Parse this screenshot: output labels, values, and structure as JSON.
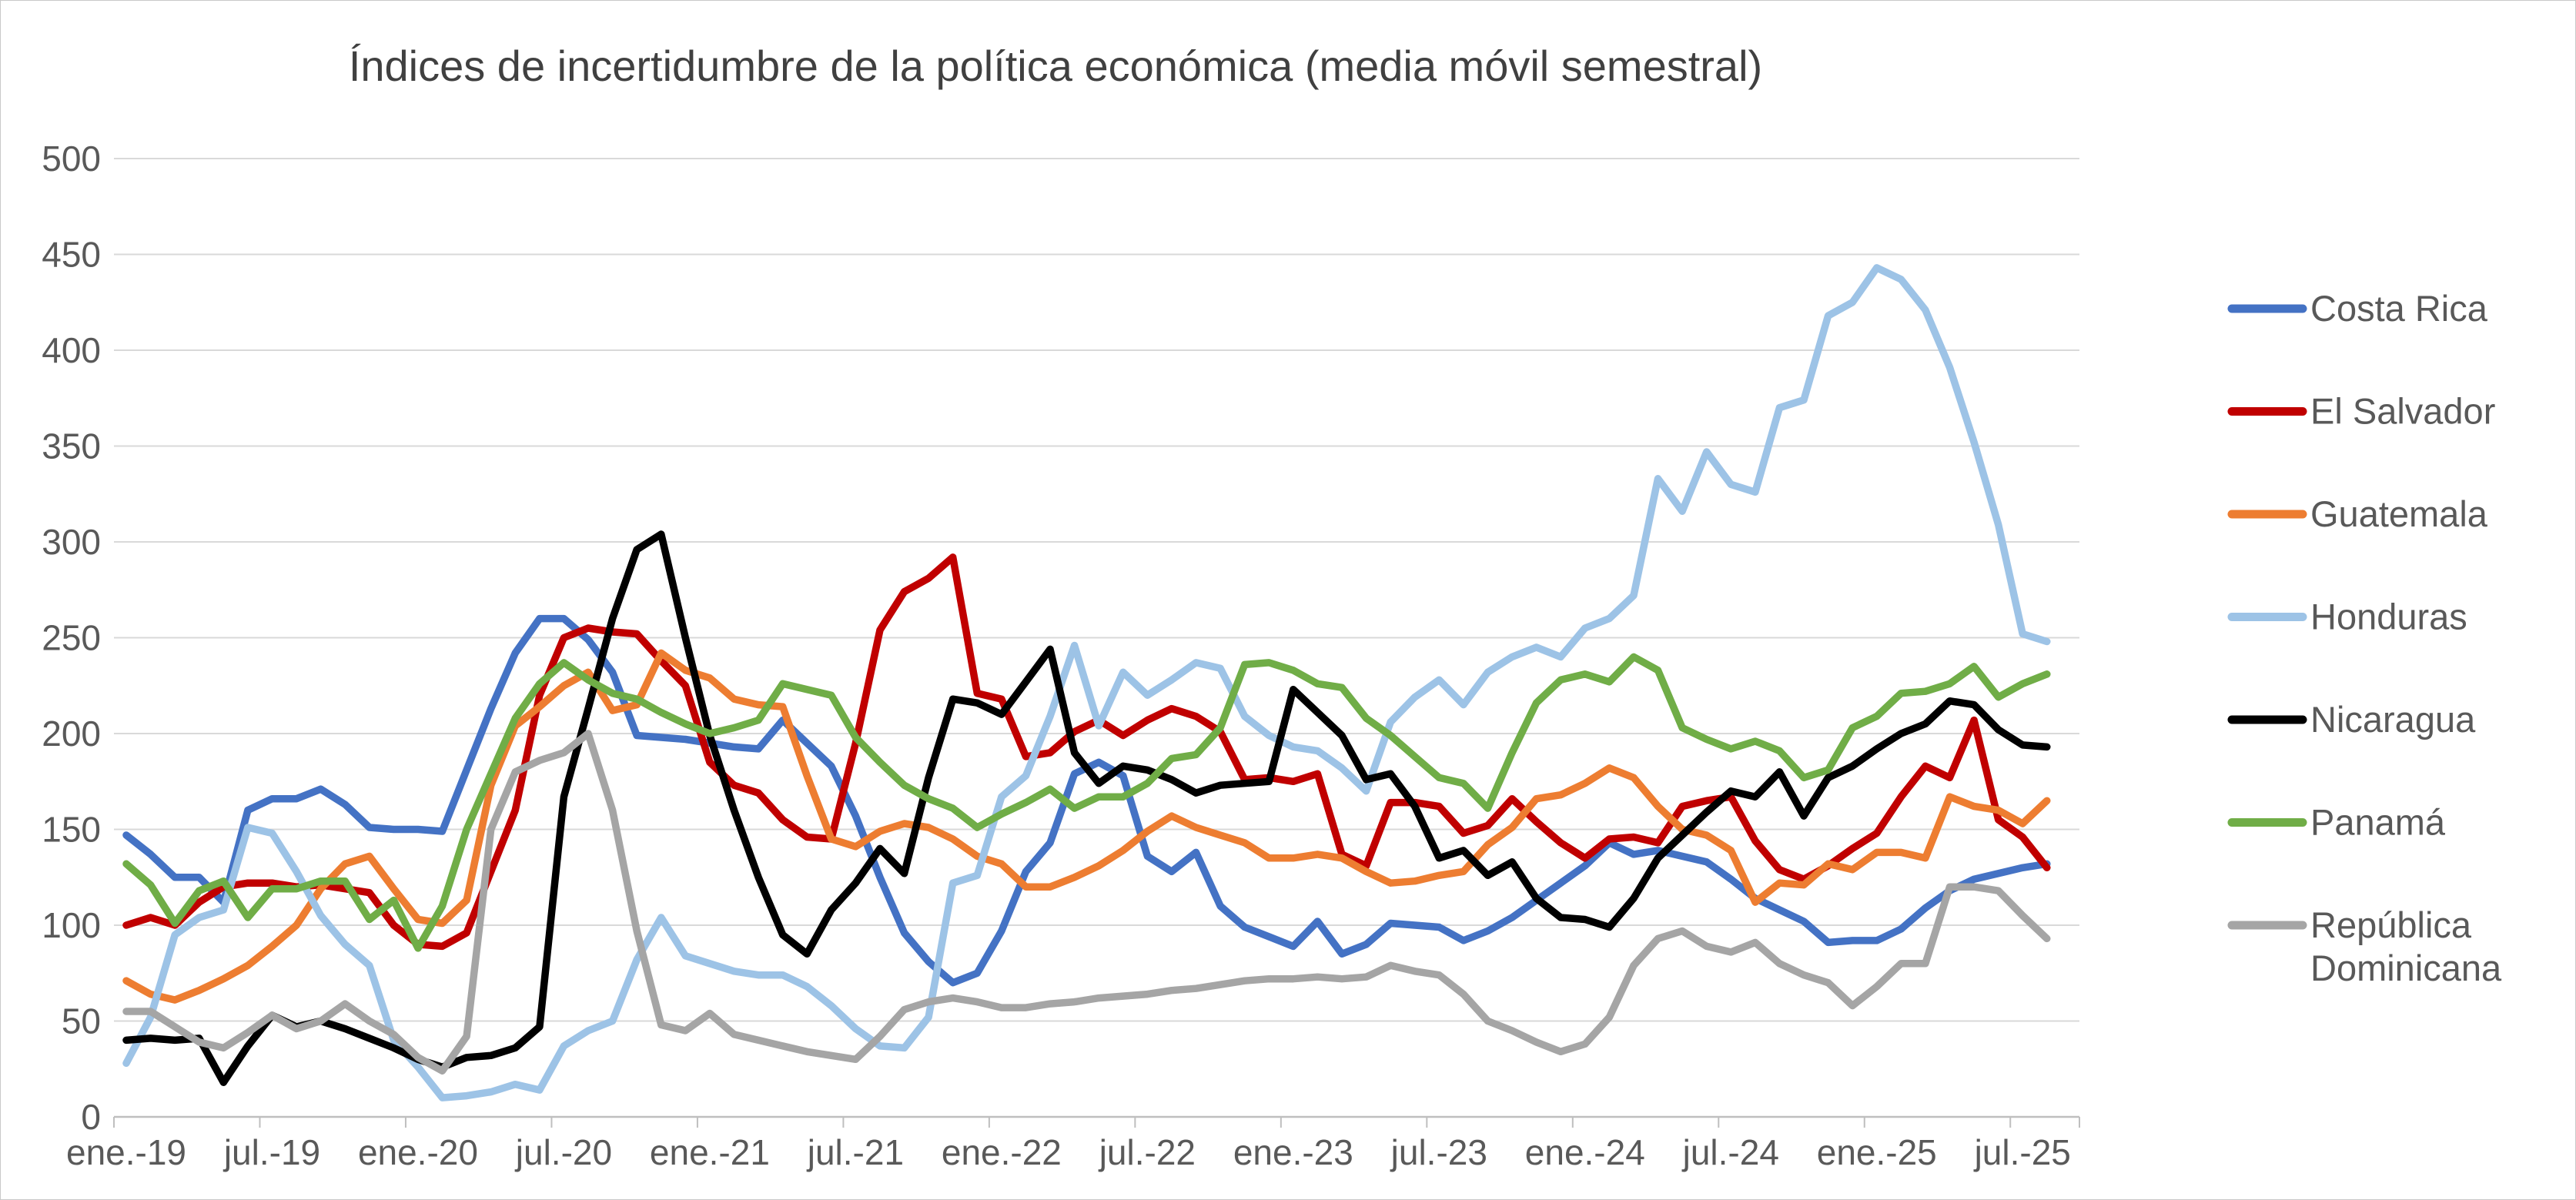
{
  "title": "Índices de incertidumbre de la política económica (media móvil semestral)",
  "chart_data": {
    "type": "line",
    "title": "Índices de incertidumbre de la política económica (media móvil semestral)",
    "xlabel": "",
    "ylabel": "",
    "x_start": "ene.-19",
    "x_end": "ago.-25",
    "x_frequency": "monthly",
    "x_tick_labels": [
      "ene.-19",
      "jul.-19",
      "ene.-20",
      "jul.-20",
      "ene.-21",
      "jul.-21",
      "ene.-22",
      "jul.-22",
      "ene.-23",
      "jul.-23",
      "ene.-24",
      "jul.-24",
      "ene.-25",
      "jul.-25"
    ],
    "y_ticks": [
      0,
      50,
      100,
      150,
      200,
      250,
      300,
      350,
      400,
      450,
      500
    ],
    "ylim": [
      0,
      500
    ],
    "grid": true,
    "legend_position": "right",
    "series": [
      {
        "name": "Costa Rica",
        "color": "#4472C4",
        "values": [
          147,
          137,
          125,
          125,
          112,
          160,
          166,
          166,
          171,
          163,
          151,
          150,
          150,
          149,
          181,
          213,
          242,
          260,
          260,
          249,
          232,
          199,
          198,
          197,
          195,
          193,
          192,
          207,
          195,
          183,
          157,
          125,
          96,
          81,
          70,
          75,
          97,
          128,
          143,
          179,
          185,
          178,
          136,
          128,
          138,
          110,
          99,
          94,
          89,
          102,
          85,
          90,
          101,
          100,
          99,
          92,
          97,
          104,
          113,
          122,
          131,
          143,
          137,
          139,
          136,
          133,
          124,
          114,
          108,
          102,
          91,
          92,
          92,
          98,
          109,
          118,
          124,
          127,
          130,
          132
        ]
      },
      {
        "name": "El Salvador",
        "color": "#C00000",
        "values": [
          100,
          104,
          100,
          112,
          120,
          122,
          122,
          120,
          121,
          119,
          117,
          100,
          90,
          89,
          96,
          128,
          160,
          220,
          250,
          255,
          253,
          252,
          238,
          225,
          185,
          173,
          169,
          155,
          146,
          145,
          195,
          254,
          274,
          281,
          292,
          221,
          218,
          188,
          190,
          201,
          207,
          199,
          207,
          213,
          209,
          201,
          176,
          177,
          175,
          179,
          137,
          131,
          164,
          164,
          162,
          148,
          152,
          166,
          154,
          143,
          135,
          145,
          146,
          143,
          162,
          165,
          167,
          144,
          129,
          124,
          131,
          140,
          148,
          167,
          183,
          177,
          207,
          155,
          146,
          130
        ]
      },
      {
        "name": "Guatemala",
        "color": "#ED7D31",
        "values": [
          71,
          64,
          61,
          66,
          72,
          79,
          89,
          100,
          119,
          132,
          136,
          119,
          103,
          101,
          113,
          173,
          204,
          214,
          225,
          232,
          212,
          215,
          242,
          233,
          229,
          218,
          215,
          214,
          178,
          145,
          141,
          149,
          153,
          151,
          145,
          136,
          132,
          120,
          120,
          125,
          131,
          139,
          149,
          157,
          151,
          147,
          143,
          135,
          135,
          137,
          135,
          128,
          122,
          123,
          126,
          128,
          142,
          151,
          166,
          168,
          174,
          182,
          177,
          162,
          150,
          147,
          139,
          112,
          122,
          121,
          132,
          129,
          138,
          138,
          135,
          167,
          162,
          160,
          153,
          165
        ]
      },
      {
        "name": "Honduras",
        "color": "#9DC3E6",
        "values": [
          28,
          52,
          95,
          104,
          108,
          151,
          148,
          128,
          105,
          90,
          79,
          40,
          26,
          10,
          11,
          13,
          17,
          14,
          37,
          45,
          50,
          82,
          104,
          84,
          80,
          76,
          74,
          74,
          68,
          58,
          46,
          37,
          36,
          52,
          122,
          126,
          167,
          178,
          209,
          246,
          204,
          232,
          220,
          228,
          237,
          234,
          209,
          199,
          193,
          191,
          182,
          170,
          206,
          219,
          228,
          215,
          232,
          240,
          245,
          240,
          255,
          260,
          272,
          333,
          316,
          347,
          330,
          326,
          370,
          374,
          418,
          425,
          443,
          437,
          421,
          391,
          352,
          309,
          252,
          248
        ]
      },
      {
        "name": "Nicaragua",
        "color": "#000000",
        "values": [
          40,
          41,
          40,
          41,
          18,
          37,
          53,
          47,
          50,
          46,
          41,
          36,
          30,
          26,
          31,
          32,
          36,
          47,
          167,
          213,
          260,
          296,
          304,
          250,
          199,
          160,
          125,
          95,
          85,
          108,
          122,
          140,
          127,
          177,
          218,
          216,
          210,
          227,
          244,
          190,
          174,
          183,
          181,
          176,
          169,
          173,
          174,
          175,
          223,
          211,
          199,
          176,
          179,
          162,
          135,
          139,
          126,
          133,
          114,
          104,
          103,
          99,
          114,
          135,
          147,
          159,
          170,
          167,
          180,
          157,
          177,
          183,
          192,
          200,
          205,
          217,
          215,
          202,
          194,
          193
        ]
      },
      {
        "name": "Panamá",
        "color": "#70AD47",
        "values": [
          132,
          121,
          101,
          118,
          123,
          104,
          119,
          119,
          123,
          123,
          103,
          113,
          88,
          110,
          150,
          179,
          208,
          226,
          237,
          228,
          221,
          218,
          211,
          205,
          200,
          203,
          207,
          226,
          223,
          220,
          198,
          185,
          173,
          166,
          161,
          151,
          158,
          164,
          171,
          161,
          167,
          167,
          174,
          187,
          189,
          203,
          236,
          237,
          233,
          226,
          224,
          208,
          199,
          188,
          177,
          174,
          161,
          190,
          216,
          228,
          231,
          227,
          240,
          233,
          203,
          197,
          192,
          196,
          191,
          177,
          181,
          203,
          209,
          221,
          222,
          226,
          235,
          219,
          226,
          231
        ]
      },
      {
        "name": "República Dominicana",
        "color": "#A5A5A5",
        "values": [
          55,
          55,
          47,
          39,
          36,
          44,
          53,
          46,
          50,
          59,
          50,
          43,
          31,
          24,
          42,
          150,
          180,
          186,
          190,
          200,
          160,
          97,
          48,
          45,
          54,
          43,
          40,
          37,
          34,
          32,
          30,
          42,
          56,
          60,
          62,
          60,
          57,
          57,
          59,
          60,
          62,
          63,
          64,
          66,
          67,
          69,
          71,
          72,
          72,
          73,
          72,
          73,
          79,
          76,
          74,
          64,
          50,
          45,
          39,
          34,
          38,
          52,
          79,
          93,
          97,
          89,
          86,
          91,
          80,
          74,
          70,
          58,
          68,
          80,
          80,
          120,
          120,
          118,
          105,
          93
        ]
      }
    ]
  },
  "styles": {
    "grid_color": "#D9D9D9",
    "axis_color": "#BFBFBF",
    "label_color": "#595959",
    "title_color": "#404040"
  }
}
